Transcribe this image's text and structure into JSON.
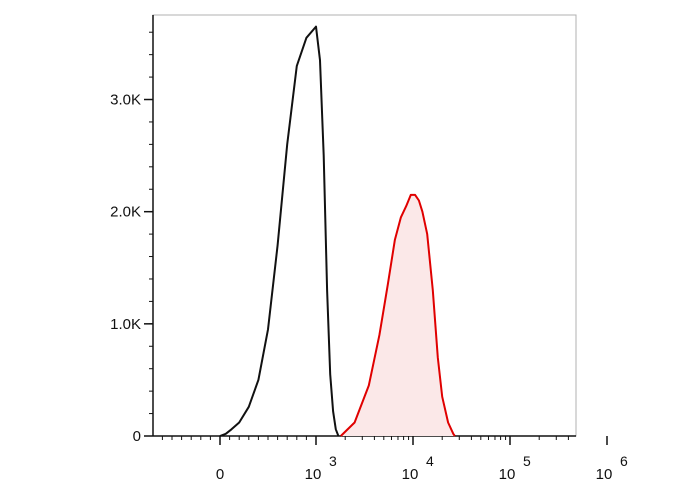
{
  "chart_data": {
    "type": "area",
    "title": "",
    "xlabel": "",
    "ylabel": "",
    "x_scale": "biexponential",
    "y_range": [
      0,
      3700
    ],
    "y_ticks": [
      {
        "value": 0,
        "label": "0"
      },
      {
        "value": 1000,
        "label": "1.0K"
      },
      {
        "value": 2000,
        "label": "2.0K"
      },
      {
        "value": 3000,
        "label": "3.0K"
      }
    ],
    "x_ticks": [
      {
        "value": 0,
        "base": "0",
        "exp": ""
      },
      {
        "value": 1000,
        "base": "10",
        "exp": "3"
      },
      {
        "value": 10000,
        "base": "10",
        "exp": "4"
      },
      {
        "value": 100000,
        "base": "10",
        "exp": "5"
      },
      {
        "value": 1000000,
        "base": "10",
        "exp": "6"
      }
    ],
    "series": [
      {
        "color": "#111111",
        "fill": "none",
        "points": [
          [
            0,
            0
          ],
          [
            60,
            20
          ],
          [
            120,
            60
          ],
          [
            200,
            120
          ],
          [
            300,
            260
          ],
          [
            400,
            500
          ],
          [
            500,
            950
          ],
          [
            600,
            1700
          ],
          [
            700,
            2600
          ],
          [
            800,
            3300
          ],
          [
            900,
            3550
          ],
          [
            1000,
            3650
          ],
          [
            1100,
            3350
          ],
          [
            1200,
            2500
          ],
          [
            1300,
            1300
          ],
          [
            1400,
            550
          ],
          [
            1500,
            220
          ],
          [
            1600,
            60
          ],
          [
            1700,
            0
          ]
        ]
      },
      {
        "color": "#e00000",
        "fill": "#fbe8e8",
        "points": [
          [
            1800,
            0
          ],
          [
            2500,
            120
          ],
          [
            3500,
            450
          ],
          [
            4500,
            900
          ],
          [
            5500,
            1350
          ],
          [
            6500,
            1750
          ],
          [
            7500,
            1950
          ],
          [
            8500,
            2050
          ],
          [
            9500,
            2150
          ],
          [
            10500,
            2150
          ],
          [
            11500,
            2100
          ],
          [
            12500,
            2000
          ],
          [
            14000,
            1800
          ],
          [
            16000,
            1300
          ],
          [
            18000,
            700
          ],
          [
            20000,
            350
          ],
          [
            23000,
            120
          ],
          [
            26000,
            20
          ],
          [
            27000,
            0
          ]
        ]
      }
    ]
  }
}
